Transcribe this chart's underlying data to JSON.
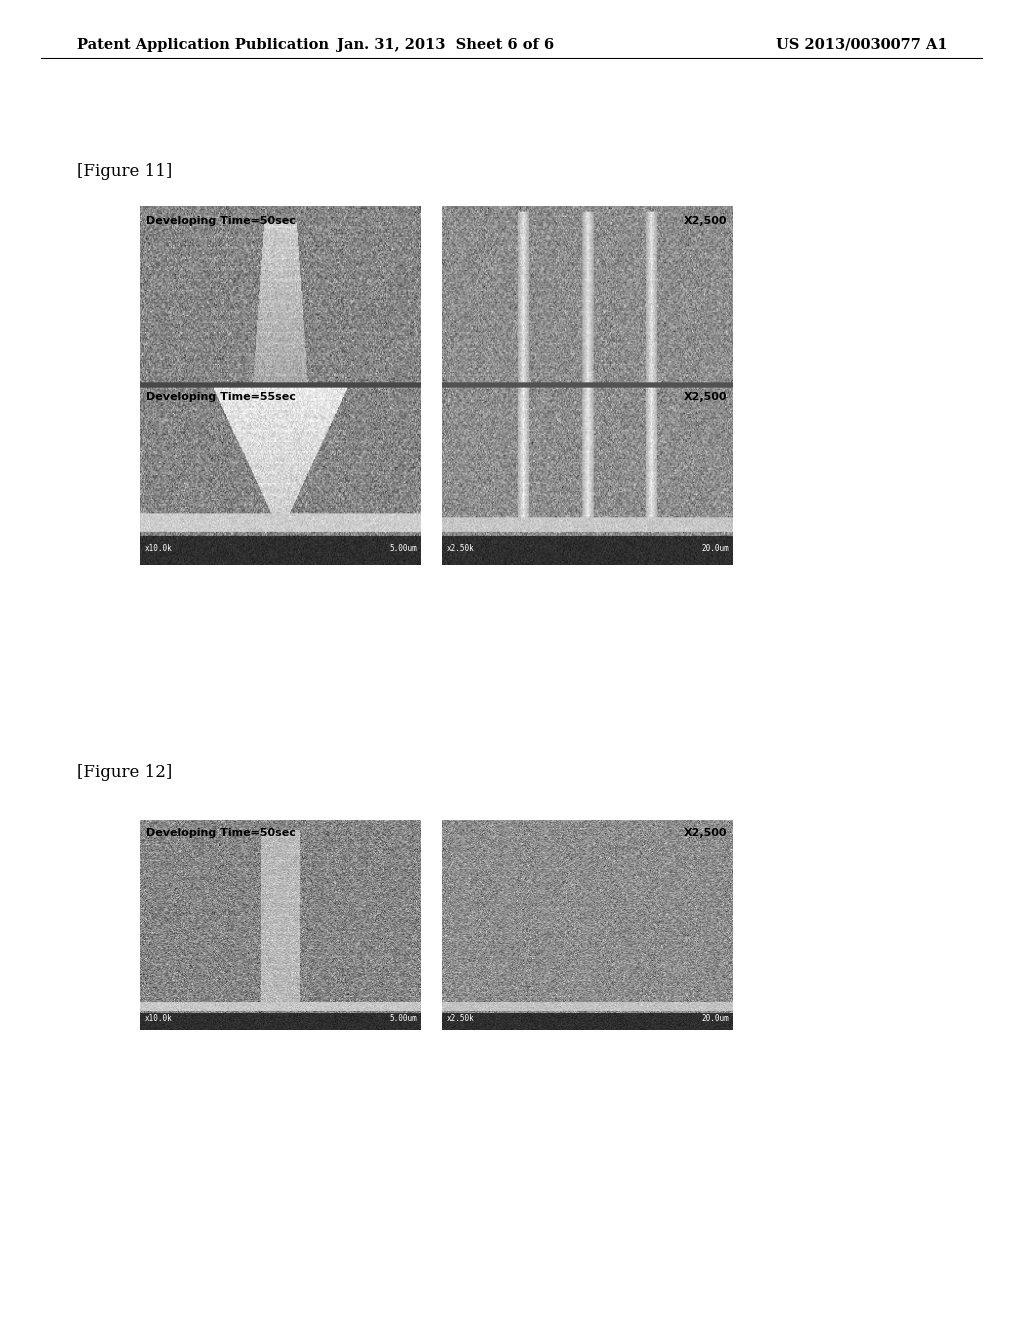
{
  "background_color": "#ffffff",
  "header_left": "Patent Application Publication",
  "header_center": "Jan. 31, 2013  Sheet 6 of 6",
  "header_right": "US 2013/0030077 A1",
  "figure11_label": "[Figure 11]",
  "figure12_label": "[Figure 12]",
  "fig11_img1_label_top": "Developing Time=50sec",
  "fig11_img1_label_bottom": "Developing Time=55sec",
  "fig11_img2_label_top": "X2,500",
  "fig11_img2_label_bottom": "X2,500",
  "fig12_img1_label": "Developing Time=50sec",
  "fig12_img2_label": "X2,500",
  "fig11_img1_bar_left": "x10.0k",
  "fig11_img1_bar_right": "5.00um",
  "fig11_img2_bar_left": "x2.50k",
  "fig11_img2_bar_right": "20.0um",
  "fig12_img1_bar_left": "x10.0k",
  "fig12_img1_bar_right": "5.00um",
  "fig12_img2_bar_left": "x2.50k",
  "fig12_img2_bar_right": "20.0um",
  "sem_base_gray": 0.58,
  "sem_noise_std": 0.09
}
